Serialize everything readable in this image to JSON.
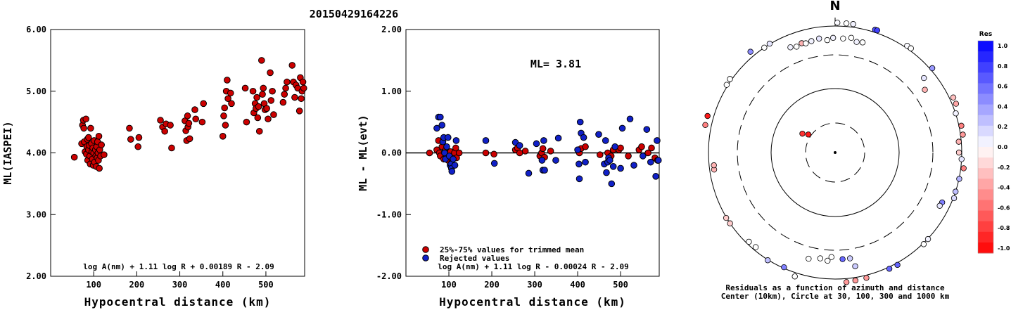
{
  "figure_title": "20150429164226",
  "chart_data": [
    {
      "type": "scatter",
      "ylabel": "ML(IASPEI)",
      "xlabel": "Hypocentral distance (km)",
      "xlim": [
        0,
        590
      ],
      "ylim": [
        2.0,
        6.0
      ],
      "x_ticks": [
        100,
        200,
        300,
        400,
        500
      ],
      "y_ticks": [
        "2.00",
        "3.00",
        "4.00",
        "5.00",
        "6.00"
      ],
      "point_color": "#cc0000",
      "formula": "log A(nm) + 1.11 log R + 0.00189 R - 2.09",
      "points": [
        [
          55,
          3.93
        ],
        [
          72,
          4.15
        ],
        [
          74,
          4.45
        ],
        [
          76,
          4.53
        ],
        [
          77,
          4.4
        ],
        [
          78,
          4.18
        ],
        [
          80,
          4.02
        ],
        [
          82,
          4.55
        ],
        [
          83,
          3.98
        ],
        [
          84,
          4.1
        ],
        [
          85,
          4.22
        ],
        [
          86,
          3.88
        ],
        [
          88,
          4.05
        ],
        [
          88,
          4.25
        ],
        [
          90,
          4.12
        ],
        [
          91,
          3.95
        ],
        [
          92,
          3.82
        ],
        [
          93,
          4.4
        ],
        [
          95,
          4.15
        ],
        [
          96,
          4.02
        ],
        [
          97,
          3.9
        ],
        [
          98,
          4.08
        ],
        [
          99,
          3.8
        ],
        [
          100,
          4.0
        ],
        [
          101,
          4.2
        ],
        [
          102,
          3.85
        ],
        [
          104,
          4.05
        ],
        [
          105,
          3.95
        ],
        [
          106,
          3.78
        ],
        [
          107,
          4.1
        ],
        [
          108,
          3.92
        ],
        [
          109,
          4.18
        ],
        [
          110,
          4.0
        ],
        [
          111,
          3.88
        ],
        [
          112,
          4.27
        ],
        [
          113,
          3.75
        ],
        [
          114,
          4.05
        ],
        [
          116,
          3.95
        ],
        [
          118,
          4.13
        ],
        [
          124,
          3.97
        ],
        [
          183,
          4.4
        ],
        [
          186,
          4.22
        ],
        [
          203,
          4.1
        ],
        [
          205,
          4.25
        ],
        [
          255,
          4.53
        ],
        [
          260,
          4.42
        ],
        [
          265,
          4.35
        ],
        [
          268,
          4.47
        ],
        [
          278,
          4.45
        ],
        [
          281,
          4.08
        ],
        [
          312,
          4.52
        ],
        [
          314,
          4.36
        ],
        [
          316,
          4.2
        ],
        [
          318,
          4.6
        ],
        [
          319,
          4.42
        ],
        [
          321,
          4.48
        ],
        [
          323,
          4.23
        ],
        [
          335,
          4.7
        ],
        [
          337,
          4.55
        ],
        [
          352,
          4.5
        ],
        [
          355,
          4.8
        ],
        [
          400,
          4.27
        ],
        [
          402,
          4.6
        ],
        [
          404,
          4.73
        ],
        [
          406,
          4.45
        ],
        [
          408,
          5.0
        ],
        [
          410,
          5.18
        ],
        [
          412,
          4.88
        ],
        [
          418,
          4.97
        ],
        [
          420,
          4.8
        ],
        [
          452,
          5.05
        ],
        [
          455,
          4.5
        ],
        [
          470,
          5.0
        ],
        [
          472,
          4.65
        ],
        [
          475,
          4.8
        ],
        [
          477,
          4.72
        ],
        [
          479,
          4.9
        ],
        [
          481,
          4.57
        ],
        [
          483,
          4.75
        ],
        [
          485,
          4.35
        ],
        [
          490,
          5.5
        ],
        [
          492,
          4.95
        ],
        [
          494,
          5.05
        ],
        [
          496,
          4.8
        ],
        [
          498,
          4.7
        ],
        [
          502,
          4.72
        ],
        [
          505,
          4.55
        ],
        [
          510,
          5.3
        ],
        [
          512,
          4.85
        ],
        [
          515,
          5.0
        ],
        [
          518,
          4.62
        ],
        [
          540,
          4.82
        ],
        [
          543,
          4.95
        ],
        [
          546,
          5.05
        ],
        [
          549,
          5.15
        ],
        [
          561,
          5.42
        ],
        [
          564,
          5.15
        ],
        [
          567,
          4.9
        ],
        [
          570,
          5.1
        ],
        [
          574,
          5.05
        ],
        [
          578,
          4.68
        ],
        [
          580,
          5.22
        ],
        [
          582,
          4.88
        ],
        [
          584,
          5.0
        ],
        [
          586,
          5.15
        ],
        [
          588,
          5.05
        ]
      ]
    },
    {
      "type": "scatter",
      "ylabel": "ML - ML(evt)",
      "xlabel": "Hypocentral distance (km)",
      "xlim": [
        0,
        590
      ],
      "ylim": [
        -2.0,
        2.0
      ],
      "x_ticks": [
        100,
        200,
        300,
        400,
        500
      ],
      "y_ticks": [
        "-2.00",
        "-1.00",
        "0.00",
        "1.00",
        "2.00"
      ],
      "ml_text": "ML= 3.81",
      "formula": "log A(nm) + 1.11 log R - 0.00024 R - 2.09",
      "legend": {
        "position": "bottom-left",
        "items": [
          {
            "label": "25%-75% values for trimmed mean",
            "color": "#cc0000"
          },
          {
            "label": "Rejected values",
            "color": "#1020c8"
          }
        ]
      },
      "points_red": [
        [
          55,
          0.0
        ],
        [
          72,
          0.05
        ],
        [
          76,
          0.2
        ],
        [
          78,
          0.0
        ],
        [
          80,
          -0.05
        ],
        [
          84,
          0.1
        ],
        [
          88,
          -0.1
        ],
        [
          90,
          0.02
        ],
        [
          93,
          0.05
        ],
        [
          96,
          -0.02
        ],
        [
          98,
          -0.12
        ],
        [
          100,
          0.0
        ],
        [
          104,
          0.02
        ],
        [
          107,
          -0.15
        ],
        [
          110,
          -0.05
        ],
        [
          113,
          0.0
        ],
        [
          116,
          0.08
        ],
        [
          118,
          -0.08
        ],
        [
          124,
          0.0
        ],
        [
          186,
          0.0
        ],
        [
          205,
          -0.02
        ],
        [
          255,
          0.05
        ],
        [
          260,
          0.08
        ],
        [
          265,
          0.0
        ],
        [
          278,
          0.03
        ],
        [
          312,
          -0.05
        ],
        [
          316,
          0.0
        ],
        [
          319,
          0.07
        ],
        [
          323,
          -0.07
        ],
        [
          337,
          0.03
        ],
        [
          404,
          0.0
        ],
        [
          408,
          0.07
        ],
        [
          418,
          0.1
        ],
        [
          452,
          -0.03
        ],
        [
          470,
          0.0
        ],
        [
          478,
          -0.05
        ],
        [
          483,
          0.05
        ],
        [
          496,
          0.05
        ],
        [
          500,
          0.08
        ],
        [
          518,
          -0.05
        ],
        [
          543,
          0.05
        ],
        [
          549,
          0.1
        ],
        [
          564,
          0.0
        ],
        [
          572,
          0.08
        ],
        [
          580,
          -0.08
        ],
        [
          586,
          -0.12
        ]
      ],
      "points_blue": [
        [
          72,
          0.4
        ],
        [
          76,
          0.58
        ],
        [
          80,
          0.58
        ],
        [
          84,
          0.45
        ],
        [
          86,
          0.18
        ],
        [
          88,
          0.25
        ],
        [
          90,
          0.0
        ],
        [
          92,
          -0.1
        ],
        [
          95,
          0.1
        ],
        [
          98,
          0.25
        ],
        [
          101,
          -0.05
        ],
        [
          103,
          -0.2
        ],
        [
          105,
          -0.18
        ],
        [
          106,
          -0.25
        ],
        [
          107,
          -0.3
        ],
        [
          110,
          -0.1
        ],
        [
          114,
          -0.2
        ],
        [
          117,
          0.2
        ],
        [
          186,
          0.2
        ],
        [
          206,
          -0.17
        ],
        [
          255,
          0.17
        ],
        [
          265,
          0.12
        ],
        [
          286,
          -0.33
        ],
        [
          304,
          0.15
        ],
        [
          317,
          -0.12
        ],
        [
          319,
          -0.28
        ],
        [
          321,
          0.2
        ],
        [
          323,
          -0.28
        ],
        [
          349,
          -0.12
        ],
        [
          355,
          0.24
        ],
        [
          400,
          0.05
        ],
        [
          403,
          -0.18
        ],
        [
          404,
          -0.42
        ],
        [
          406,
          0.5
        ],
        [
          408,
          0.32
        ],
        [
          414,
          0.25
        ],
        [
          418,
          -0.15
        ],
        [
          449,
          0.3
        ],
        [
          462,
          -0.18
        ],
        [
          465,
          0.2
        ],
        [
          467,
          -0.32
        ],
        [
          470,
          -0.15
        ],
        [
          472,
          -0.08
        ],
        [
          475,
          -0.12
        ],
        [
          479,
          -0.5
        ],
        [
          483,
          -0.22
        ],
        [
          487,
          0.1
        ],
        [
          500,
          -0.25
        ],
        [
          504,
          0.4
        ],
        [
          522,
          0.55
        ],
        [
          531,
          -0.2
        ],
        [
          552,
          -0.05
        ],
        [
          561,
          0.38
        ],
        [
          570,
          -0.15
        ],
        [
          582,
          -0.38
        ],
        [
          585,
          0.2
        ],
        [
          588,
          -0.12
        ]
      ]
    },
    {
      "type": "polar-scatter",
      "north_label": "N",
      "caption_line1": "Residuals as a function of azimuth and distance",
      "caption_line2": "Center (10km), Circle at 30, 100, 300 and 1000 km",
      "rings_km": [
        30,
        100,
        300,
        1000
      ],
      "colorbar": {
        "title": "Res",
        "range": [
          -1.0,
          1.0
        ],
        "tick_labels": [
          "1.0",
          "0.8",
          "0.6",
          "0.4",
          "0.2",
          "0.0",
          "-0.2",
          "-0.4",
          "-0.6",
          "-0.8",
          "-1.0"
        ]
      },
      "points": [
        {
          "az": 1,
          "dist_km": 1140,
          "res": 0.02
        },
        {
          "az": 5,
          "dist_km": 1130,
          "res": 0.0
        },
        {
          "az": 8,
          "dist_km": 1135,
          "res": 0.05
        },
        {
          "az": 18,
          "dist_km": 1105,
          "res": 0.7
        },
        {
          "az": 19,
          "dist_km": 1112,
          "res": 0.75
        },
        {
          "az": 34,
          "dist_km": 1090,
          "res": 0.02
        },
        {
          "az": 36,
          "dist_km": 1095,
          "res": 0.0
        },
        {
          "az": 49,
          "dist_km": 1085,
          "res": 0.4
        },
        {
          "az": 50,
          "dist_km": 640,
          "res": 0.1
        },
        {
          "az": 55,
          "dist_km": 490,
          "res": -0.3
        },
        {
          "az": 65,
          "dist_km": 1160,
          "res": -0.25
        },
        {
          "az": 68,
          "dist_km": 1160,
          "res": -0.35
        },
        {
          "az": 72,
          "dist_km": 1010,
          "res": 0.05
        },
        {
          "az": 78,
          "dist_km": 1100,
          "res": -0.5
        },
        {
          "az": 82,
          "dist_km": 1095,
          "res": -0.4
        },
        {
          "az": 85,
          "dist_km": 900,
          "res": -0.3
        },
        {
          "az": 90,
          "dist_km": 890,
          "res": -0.2
        },
        {
          "az": 93,
          "dist_km": 1000,
          "res": 0.1
        },
        {
          "az": 97,
          "dist_km": 1120,
          "res": -0.5
        },
        {
          "az": 102,
          "dist_km": 1010,
          "res": 0.3
        },
        {
          "az": 108,
          "dist_km": 1000,
          "res": 0.25
        },
        {
          "az": 111,
          "dist_km": 1030,
          "res": 0.15
        },
        {
          "az": 115,
          "dist_km": 700,
          "res": 0.5
        },
        {
          "az": 117,
          "dist_km": 680,
          "res": 0.1
        },
        {
          "az": 133,
          "dist_km": 1015,
          "res": 0.05
        },
        {
          "az": 136,
          "dist_km": 1035,
          "res": 0.0
        },
        {
          "az": 151,
          "dist_km": 1080,
          "res": 0.6
        },
        {
          "az": 155,
          "dist_km": 1070,
          "res": 0.6
        },
        {
          "az": 166,
          "dist_km": 1110,
          "res": -0.4
        },
        {
          "az": 171,
          "dist_km": 1125,
          "res": -0.4
        },
        {
          "az": 175,
          "dist_km": 1150,
          "res": -0.4
        },
        {
          "az": 170,
          "dist_km": 630,
          "res": 0.2
        },
        {
          "az": 172,
          "dist_km": 440,
          "res": 0.2
        },
        {
          "az": 176,
          "dist_km": 440,
          "res": 0.6
        },
        {
          "az": 182,
          "dist_km": 400,
          "res": 0.0
        },
        {
          "az": 184,
          "dist_km": 470,
          "res": 0.0
        },
        {
          "az": 188,
          "dist_km": 440,
          "res": 0.0
        },
        {
          "az": 194,
          "dist_km": 490,
          "res": 0.0
        },
        {
          "az": 198,
          "dist_km": 1160,
          "res": 0.0
        },
        {
          "az": 204,
          "dist_km": 960,
          "res": 0.5
        },
        {
          "az": 212,
          "dist_km": 1020,
          "res": 0.25
        },
        {
          "az": 220,
          "dist_km": 880,
          "res": 0.0
        },
        {
          "az": 224,
          "dist_km": 900,
          "res": 0.0
        },
        {
          "az": 236,
          "dist_km": 1005,
          "res": -0.2
        },
        {
          "az": 239,
          "dist_km": 1020,
          "res": -0.2
        },
        {
          "az": 262,
          "dist_km": 830,
          "res": -0.3
        },
        {
          "az": 264,
          "dist_km": 820,
          "res": -0.3
        },
        {
          "az": 282,
          "dist_km": 1270,
          "res": -0.5
        },
        {
          "az": 286,
          "dist_km": 1270,
          "res": -0.9
        },
        {
          "az": 300,
          "dist_km": 40,
          "res": -0.8
        },
        {
          "az": 304,
          "dist_km": 33,
          "res": -0.9
        },
        {
          "az": 302,
          "dist_km": 1050,
          "res": 0.0
        },
        {
          "az": 305,
          "dist_km": 1070,
          "res": 0.0
        },
        {
          "az": 320,
          "dist_km": 1220,
          "res": 0.45
        },
        {
          "az": 326,
          "dist_km": 1000,
          "res": 0.0
        },
        {
          "az": 329,
          "dist_km": 1020,
          "res": 0.1
        },
        {
          "az": 337,
          "dist_km": 600,
          "res": 0.05
        },
        {
          "az": 340,
          "dist_km": 560,
          "res": 0.0
        },
        {
          "az": 343,
          "dist_km": 600,
          "res": -0.3
        },
        {
          "az": 345,
          "dist_km": 570,
          "res": 0.0
        },
        {
          "az": 348,
          "dist_km": 590,
          "res": 0.05
        },
        {
          "az": 352,
          "dist_km": 620,
          "res": 0.1
        },
        {
          "az": 356,
          "dist_km": 560,
          "res": 0.0
        },
        {
          "az": 359,
          "dist_km": 610,
          "res": 0.05
        },
        {
          "az": 4,
          "dist_km": 600,
          "res": 0.0
        },
        {
          "az": 8,
          "dist_km": 640,
          "res": 0.0
        },
        {
          "az": 11,
          "dist_km": 560,
          "res": 0.05
        },
        {
          "az": 14,
          "dist_km": 580,
          "res": 0.0
        }
      ]
    }
  ]
}
